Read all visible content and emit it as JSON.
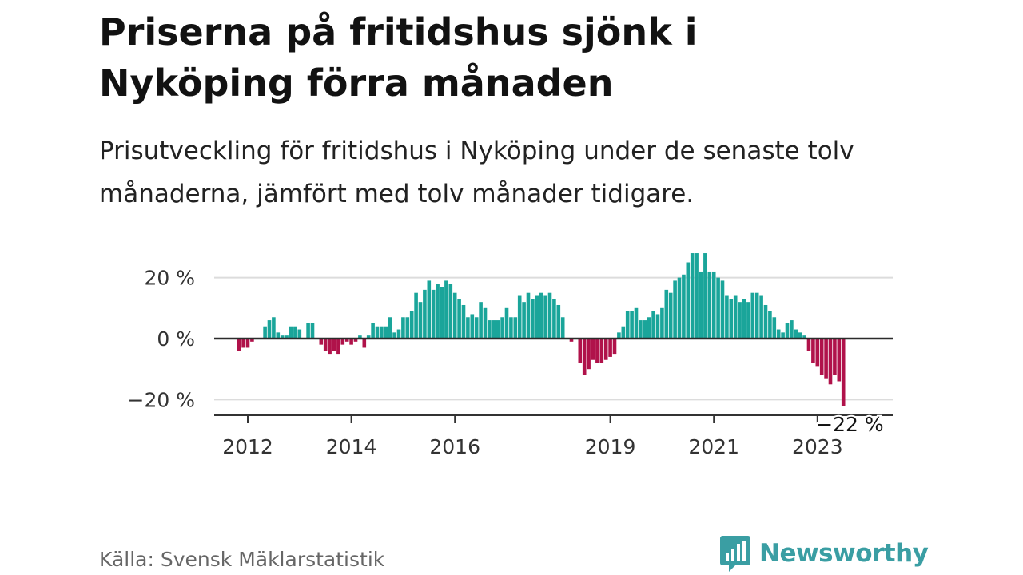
{
  "header": {
    "title": "Priserna på fritidshus sjönk i Nyköping förra månaden",
    "subtitle": "Prisutveckling för fritidshus i Nyköping under de senaste tolv månaderna, jämfört med tolv månader tidigare."
  },
  "footer": {
    "source": "Källa: Svensk Mäklarstatistik",
    "brand": "Newsworthy"
  },
  "colors": {
    "positive": "#1aa59a",
    "negative": "#b0124a",
    "brand": "#3a9ea3"
  },
  "chart_data": {
    "type": "bar",
    "title": "Priserna på fritidshus sjönk i Nyköping förra månaden",
    "xlabel": "",
    "ylabel": "",
    "ylim": [
      -25,
      30
    ],
    "yticks": [
      -20,
      0,
      20
    ],
    "ytick_labels": [
      "−20 %",
      "0 %",
      "20 %"
    ],
    "xticks": [
      {
        "label": "2012",
        "index": 2
      },
      {
        "label": "2014",
        "index": 26
      },
      {
        "label": "2016",
        "index": 50
      },
      {
        "label": "2019",
        "index": 86
      },
      {
        "label": "2021",
        "index": 110
      },
      {
        "label": "2023",
        "index": 134
      }
    ],
    "grid": true,
    "last_value_label": "−22 %",
    "start": "2011-11",
    "values": [
      -4,
      -3,
      -3,
      -1,
      null,
      null,
      4,
      6,
      7,
      2,
      1,
      1,
      4,
      4,
      3,
      null,
      5,
      5,
      null,
      -2,
      -4,
      -5,
      -4,
      -5,
      -2,
      -1,
      -2,
      -1,
      1,
      -3,
      1,
      5,
      4,
      4,
      4,
      7,
      2,
      3,
      7,
      7,
      9,
      15,
      12,
      16,
      19,
      16,
      18,
      17,
      19,
      18,
      15,
      13,
      11,
      7,
      8,
      7,
      12,
      10,
      6,
      6,
      6,
      7,
      10,
      7,
      7,
      14,
      12,
      15,
      13,
      14,
      15,
      14,
      15,
      13,
      11,
      7,
      null,
      -1,
      null,
      -8,
      -12,
      -10,
      -7,
      -8,
      -8,
      -7,
      -6,
      -5,
      2,
      4,
      9,
      9,
      10,
      6,
      6,
      7,
      9,
      8,
      10,
      16,
      15,
      19,
      20,
      21,
      25,
      28,
      28,
      22,
      28,
      22,
      22,
      20,
      19,
      14,
      13,
      14,
      12,
      13,
      12,
      15,
      15,
      14,
      11,
      9,
      7,
      3,
      2,
      5,
      6,
      3,
      2,
      1,
      -4,
      -8,
      -9,
      -12,
      -13,
      -15,
      -12,
      -14,
      -22
    ]
  }
}
